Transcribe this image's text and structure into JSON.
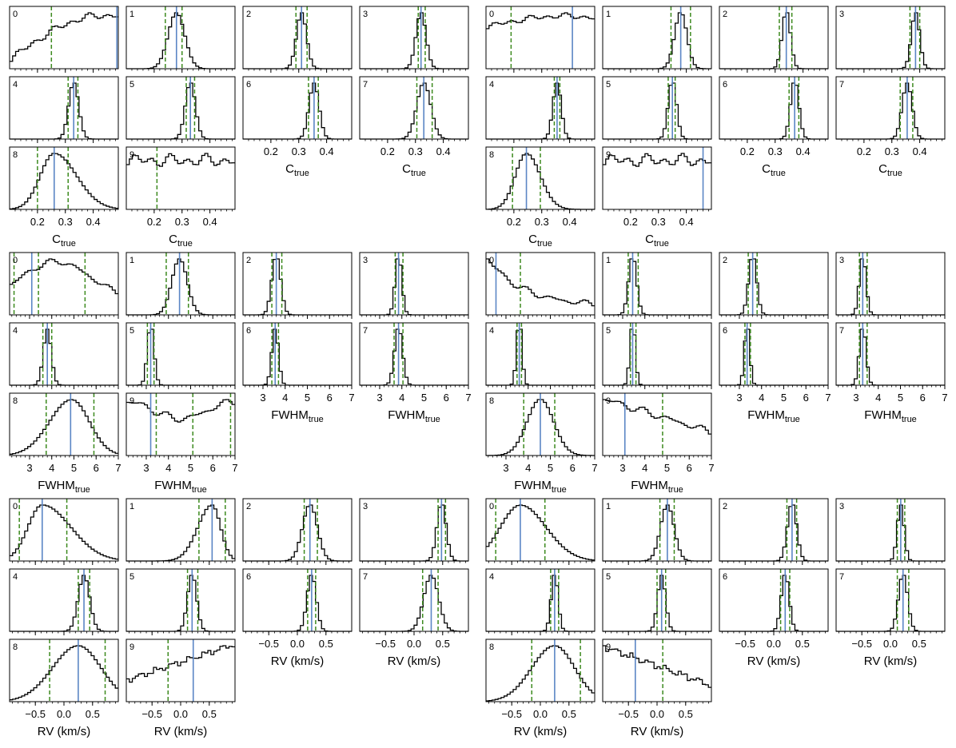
{
  "colors": {
    "histogram": "#000000",
    "median_line": "#5b86c5",
    "interval_line": "#3d8a1f"
  },
  "chart_data": {
    "type": "histogram-grid",
    "blocks": [
      {
        "id": "left-ctrue",
        "xlim": [
          0.1,
          0.49
        ],
        "xlabel_main": "C",
        "xlabel_sub": "true",
        "ticks": [
          {
            "value": 0.2,
            "label": "0.2"
          },
          {
            "value": 0.3,
            "label": "0.3"
          },
          {
            "value": 0.4,
            "label": "0.4"
          }
        ],
        "panels": [
          {
            "index": "0",
            "shape": {
              "kind": "rise",
              "lo": 0.13,
              "hi": 0.8
            },
            "median": 0.485,
            "lines": [
              0.25
            ]
          },
          {
            "index": "1",
            "shape": {
              "kind": "gauss",
              "mu": 0.28,
              "sigma": 0.03
            },
            "median": 0.28,
            "lines": [
              0.24,
              0.3
            ]
          },
          {
            "index": "2",
            "shape": {
              "kind": "gauss",
              "mu": 0.31,
              "sigma": 0.018
            },
            "median": 0.31,
            "lines": [
              0.29,
              0.33
            ]
          },
          {
            "index": "3",
            "shape": {
              "kind": "gauss",
              "mu": 0.32,
              "sigma": 0.018
            },
            "median": 0.32,
            "lines": [
              0.31,
              0.335
            ]
          },
          {
            "index": "4",
            "shape": {
              "kind": "gauss",
              "mu": 0.33,
              "sigma": 0.018
            },
            "median": 0.33,
            "lines": [
              0.31,
              0.345
            ]
          },
          {
            "index": "5",
            "shape": {
              "kind": "gauss",
              "mu": 0.33,
              "sigma": 0.018
            },
            "median": 0.33,
            "lines": [
              0.315,
              0.345
            ]
          },
          {
            "index": "6",
            "shape": {
              "kind": "gauss",
              "mu": 0.355,
              "sigma": 0.018
            },
            "median": 0.355,
            "lines": [
              0.335,
              0.37
            ]
          },
          {
            "index": "7",
            "shape": {
              "kind": "gauss",
              "mu": 0.33,
              "sigma": 0.025
            },
            "median": 0.33,
            "lines": [
              0.305,
              0.36
            ]
          },
          {
            "index": "8",
            "shape": {
              "kind": "skew",
              "mu": 0.26,
              "sl": 0.05,
              "sr": 0.08
            },
            "median": 0.26,
            "lines": [
              0.2,
              0.31
            ]
          },
          {
            "index": "9",
            "shape": {
              "kind": "flat",
              "level": 0.5
            },
            "median": null,
            "lines": [
              0.21
            ]
          }
        ]
      },
      {
        "id": "right-ctrue",
        "xlim": [
          0.1,
          0.49
        ],
        "xlabel_main": "C",
        "xlabel_sub": "true",
        "ticks": [
          {
            "value": 0.2,
            "label": "0.2"
          },
          {
            "value": 0.3,
            "label": "0.3"
          },
          {
            "value": 0.4,
            "label": "0.4"
          }
        ],
        "panels": [
          {
            "index": "0",
            "shape": {
              "kind": "hump",
              "mu": 0.38,
              "sigma": 0.3,
              "base": 0.4
            },
            "median": 0.41,
            "lines": [
              0.19
            ]
          },
          {
            "index": "1",
            "shape": {
              "kind": "gauss",
              "mu": 0.38,
              "sigma": 0.022
            },
            "median": 0.38,
            "lines": [
              0.345,
              0.415
            ]
          },
          {
            "index": "2",
            "shape": {
              "kind": "gauss",
              "mu": 0.34,
              "sigma": 0.015
            },
            "median": 0.34,
            "lines": [
              0.315,
              0.36
            ]
          },
          {
            "index": "3",
            "shape": {
              "kind": "gauss",
              "mu": 0.385,
              "sigma": 0.015
            },
            "median": 0.385,
            "lines": [
              0.365,
              0.4
            ]
          },
          {
            "index": "4",
            "shape": {
              "kind": "gauss",
              "mu": 0.355,
              "sigma": 0.015
            },
            "median": 0.355,
            "lines": [
              0.345,
              0.365
            ]
          },
          {
            "index": "5",
            "shape": {
              "kind": "gauss",
              "mu": 0.35,
              "sigma": 0.015
            },
            "median": 0.35,
            "lines": [
              0.335,
              0.36
            ]
          },
          {
            "index": "6",
            "shape": {
              "kind": "gauss",
              "mu": 0.37,
              "sigma": 0.015
            },
            "median": 0.37,
            "lines": [
              0.35,
              0.385
            ]
          },
          {
            "index": "7",
            "shape": {
              "kind": "gauss",
              "mu": 0.355,
              "sigma": 0.018
            },
            "median": 0.355,
            "lines": [
              0.33,
              0.375
            ]
          },
          {
            "index": "8",
            "shape": {
              "kind": "skew",
              "mu": 0.245,
              "sl": 0.04,
              "sr": 0.05
            },
            "median": 0.245,
            "lines": [
              0.195,
              0.295
            ]
          },
          {
            "index": "9",
            "shape": {
              "kind": "flat",
              "level": 0.5
            },
            "median": 0.46,
            "lines": []
          }
        ]
      },
      {
        "id": "left-fwhm",
        "xlim": [
          2.1,
          7.0
        ],
        "xlabel_main": "FWHM",
        "xlabel_sub": "true",
        "ticks": [
          {
            "value": 3,
            "label": "3"
          },
          {
            "value": 4,
            "label": "4"
          },
          {
            "value": 5,
            "label": "5"
          },
          {
            "value": 6,
            "label": "6"
          },
          {
            "value": 7,
            "label": "7"
          }
        ],
        "panels": [
          {
            "index": "0",
            "shape": {
              "kind": "hump",
              "mu": 4.2,
              "sigma": 1.5,
              "base": 0.3
            },
            "median": 3.1,
            "lines": [
              2.3,
              3.4,
              5.5
            ]
          },
          {
            "index": "1",
            "shape": {
              "kind": "gauss",
              "mu": 4.5,
              "sigma": 0.35
            },
            "median": 4.5,
            "lines": [
              3.9,
              4.9
            ]
          },
          {
            "index": "2",
            "shape": {
              "kind": "gauss",
              "mu": 3.6,
              "sigma": 0.2
            },
            "median": 3.6,
            "lines": [
              3.4,
              3.85
            ]
          },
          {
            "index": "3",
            "shape": {
              "kind": "gauss",
              "mu": 3.85,
              "sigma": 0.15
            },
            "median": 3.85,
            "lines": [
              3.7,
              4.05
            ]
          },
          {
            "index": "4",
            "shape": {
              "kind": "gauss",
              "mu": 3.8,
              "sigma": 0.18
            },
            "median": 3.8,
            "lines": [
              3.6,
              4.0
            ]
          },
          {
            "index": "5",
            "shape": {
              "kind": "gauss",
              "mu": 3.2,
              "sigma": 0.15
            },
            "median": 3.2,
            "lines": [
              3.05,
              3.35
            ]
          },
          {
            "index": "6",
            "shape": {
              "kind": "gauss",
              "mu": 3.55,
              "sigma": 0.15
            },
            "median": 3.55,
            "lines": [
              3.4,
              3.7
            ]
          },
          {
            "index": "7",
            "shape": {
              "kind": "gauss",
              "mu": 3.85,
              "sigma": 0.18
            },
            "median": 3.85,
            "lines": [
              3.65,
              4.05
            ]
          },
          {
            "index": "8",
            "shape": {
              "kind": "skew",
              "mu": 4.9,
              "sl": 1.0,
              "sr": 0.8
            },
            "median": 4.85,
            "lines": [
              3.75,
              5.9
            ]
          },
          {
            "index": "9",
            "shape": {
              "kind": "bowl",
              "level": 0.65
            },
            "median": 3.2,
            "lines": [
              3.45,
              5.1,
              6.8
            ]
          }
        ]
      },
      {
        "id": "right-fwhm",
        "xlim": [
          2.1,
          7.0
        ],
        "xlabel_main": "FWHM",
        "xlabel_sub": "true",
        "ticks": [
          {
            "value": 3,
            "label": "3"
          },
          {
            "value": 4,
            "label": "4"
          },
          {
            "value": 5,
            "label": "5"
          },
          {
            "value": 6,
            "label": "6"
          },
          {
            "value": 7,
            "label": "7"
          }
        ],
        "panels": [
          {
            "index": "0",
            "shape": {
              "kind": "decay",
              "scale": 1.6,
              "base": 0.15
            },
            "median": 2.55,
            "lines": [
              3.65
            ]
          },
          {
            "index": "1",
            "shape": {
              "kind": "gauss",
              "mu": 3.45,
              "sigma": 0.18
            },
            "median": 3.45,
            "lines": [
              3.25,
              3.7
            ]
          },
          {
            "index": "2",
            "shape": {
              "kind": "gauss",
              "mu": 3.6,
              "sigma": 0.18
            },
            "median": 3.6,
            "lines": [
              3.4,
              3.8
            ]
          },
          {
            "index": "3",
            "shape": {
              "kind": "gauss",
              "mu": 3.3,
              "sigma": 0.15
            },
            "median": 3.3,
            "lines": [
              3.15,
              3.5
            ]
          },
          {
            "index": "4",
            "shape": {
              "kind": "gauss",
              "mu": 3.6,
              "sigma": 0.12
            },
            "median": 3.6,
            "lines": [
              3.5,
              3.7
            ]
          },
          {
            "index": "5",
            "shape": {
              "kind": "gauss",
              "mu": 3.45,
              "sigma": 0.12
            },
            "median": 3.45,
            "lines": [
              3.35,
              3.6
            ]
          },
          {
            "index": "6",
            "shape": {
              "kind": "gauss",
              "mu": 3.35,
              "sigma": 0.12
            },
            "median": 3.35,
            "lines": [
              3.25,
              3.5
            ]
          },
          {
            "index": "7",
            "shape": {
              "kind": "gauss",
              "mu": 3.3,
              "sigma": 0.15
            },
            "median": 3.3,
            "lines": [
              3.15,
              3.5
            ]
          },
          {
            "index": "8",
            "shape": {
              "kind": "skew",
              "mu": 4.55,
              "sl": 0.6,
              "sr": 0.6
            },
            "median": 4.55,
            "lines": [
              3.8,
              5.2
            ]
          },
          {
            "index": "9",
            "shape": {
              "kind": "slope",
              "from": 0.85,
              "to": 0.35
            },
            "median": 3.1,
            "lines": [
              4.8
            ]
          }
        ]
      },
      {
        "id": "left-rv",
        "xlim": [
          -0.95,
          0.95
        ],
        "xlabel_main": "RV (km/s)",
        "xlabel_sub": "",
        "ticks": [
          {
            "value": -0.5,
            "label": "−0.5"
          },
          {
            "value": 0.0,
            "label": "0.0"
          },
          {
            "value": 0.5,
            "label": "0.5"
          }
        ],
        "panels": [
          {
            "index": "0",
            "shape": {
              "kind": "skew",
              "mu": -0.38,
              "sl": 0.25,
              "sr": 0.5
            },
            "median": -0.38,
            "lines": [
              -0.78,
              0.05
            ]
          },
          {
            "index": "1",
            "shape": {
              "kind": "skew",
              "mu": 0.55,
              "sl": 0.25,
              "sr": 0.15
            },
            "median": 0.55,
            "lines": [
              0.32,
              0.78
            ]
          },
          {
            "index": "2",
            "shape": {
              "kind": "gauss",
              "mu": 0.22,
              "sigma": 0.13
            },
            "median": 0.22,
            "lines": [
              0.12,
              0.35
            ]
          },
          {
            "index": "3",
            "shape": {
              "kind": "gauss",
              "mu": 0.48,
              "sigma": 0.08
            },
            "median": 0.48,
            "lines": [
              0.42,
              0.55
            ]
          },
          {
            "index": "4",
            "shape": {
              "kind": "gauss",
              "mu": 0.35,
              "sigma": 0.1
            },
            "median": 0.35,
            "lines": [
              0.25,
              0.45
            ]
          },
          {
            "index": "5",
            "shape": {
              "kind": "gauss",
              "mu": 0.2,
              "sigma": 0.08
            },
            "median": 0.2,
            "lines": [
              0.12,
              0.3
            ]
          },
          {
            "index": "6",
            "shape": {
              "kind": "gauss",
              "mu": 0.25,
              "sigma": 0.08
            },
            "median": 0.25,
            "lines": [
              0.18,
              0.32
            ]
          },
          {
            "index": "7",
            "shape": {
              "kind": "gauss",
              "mu": 0.3,
              "sigma": 0.13
            },
            "median": 0.3,
            "lines": [
              0.15,
              0.42
            ]
          },
          {
            "index": "8",
            "shape": {
              "kind": "skew",
              "mu": 0.25,
              "sl": 0.45,
              "sr": 0.4
            },
            "median": 0.25,
            "lines": [
              -0.25,
              0.72
            ]
          },
          {
            "index": "9",
            "shape": {
              "kind": "slope",
              "from": 0.35,
              "to": 0.95
            },
            "median": 0.22,
            "lines": [
              -0.22
            ]
          }
        ]
      },
      {
        "id": "right-rv",
        "xlim": [
          -0.95,
          0.95
        ],
        "xlabel_main": "RV (km/s)",
        "xlabel_sub": "",
        "ticks": [
          {
            "value": -0.5,
            "label": "−0.5"
          },
          {
            "value": 0.0,
            "label": "0.0"
          },
          {
            "value": 0.5,
            "label": "0.5"
          }
        ],
        "panels": [
          {
            "index": "0",
            "shape": {
              "kind": "skew",
              "mu": -0.35,
              "sl": 0.35,
              "sr": 0.45
            },
            "median": -0.35,
            "lines": [
              -0.78,
              0.08
            ]
          },
          {
            "index": "1",
            "shape": {
              "kind": "gauss",
              "mu": 0.18,
              "sigma": 0.12
            },
            "median": 0.18,
            "lines": [
              0.05,
              0.3
            ]
          },
          {
            "index": "2",
            "shape": {
              "kind": "gauss",
              "mu": 0.32,
              "sigma": 0.08
            },
            "median": 0.32,
            "lines": [
              0.23,
              0.4
            ]
          },
          {
            "index": "3",
            "shape": {
              "kind": "gauss",
              "mu": 0.18,
              "sigma": 0.06
            },
            "median": 0.18,
            "lines": [
              0.12,
              0.25
            ]
          },
          {
            "index": "4",
            "shape": {
              "kind": "gauss",
              "mu": 0.25,
              "sigma": 0.06
            },
            "median": 0.25,
            "lines": [
              0.18,
              0.32
            ]
          },
          {
            "index": "5",
            "shape": {
              "kind": "gauss",
              "mu": 0.08,
              "sigma": 0.07
            },
            "median": 0.08,
            "lines": [
              0.0,
              0.15
            ]
          },
          {
            "index": "6",
            "shape": {
              "kind": "gauss",
              "mu": 0.2,
              "sigma": 0.07
            },
            "median": 0.2,
            "lines": [
              0.12,
              0.28
            ]
          },
          {
            "index": "7",
            "shape": {
              "kind": "gauss",
              "mu": 0.22,
              "sigma": 0.08
            },
            "median": 0.22,
            "lines": [
              0.12,
              0.32
            ]
          },
          {
            "index": "8",
            "shape": {
              "kind": "skew",
              "mu": 0.25,
              "sl": 0.4,
              "sr": 0.35
            },
            "median": 0.25,
            "lines": [
              -0.15,
              0.7
            ]
          },
          {
            "index": "9",
            "shape": {
              "kind": "slope",
              "from": 0.85,
              "to": 0.25
            },
            "median": -0.38,
            "lines": [
              0.1
            ]
          }
        ]
      }
    ]
  }
}
